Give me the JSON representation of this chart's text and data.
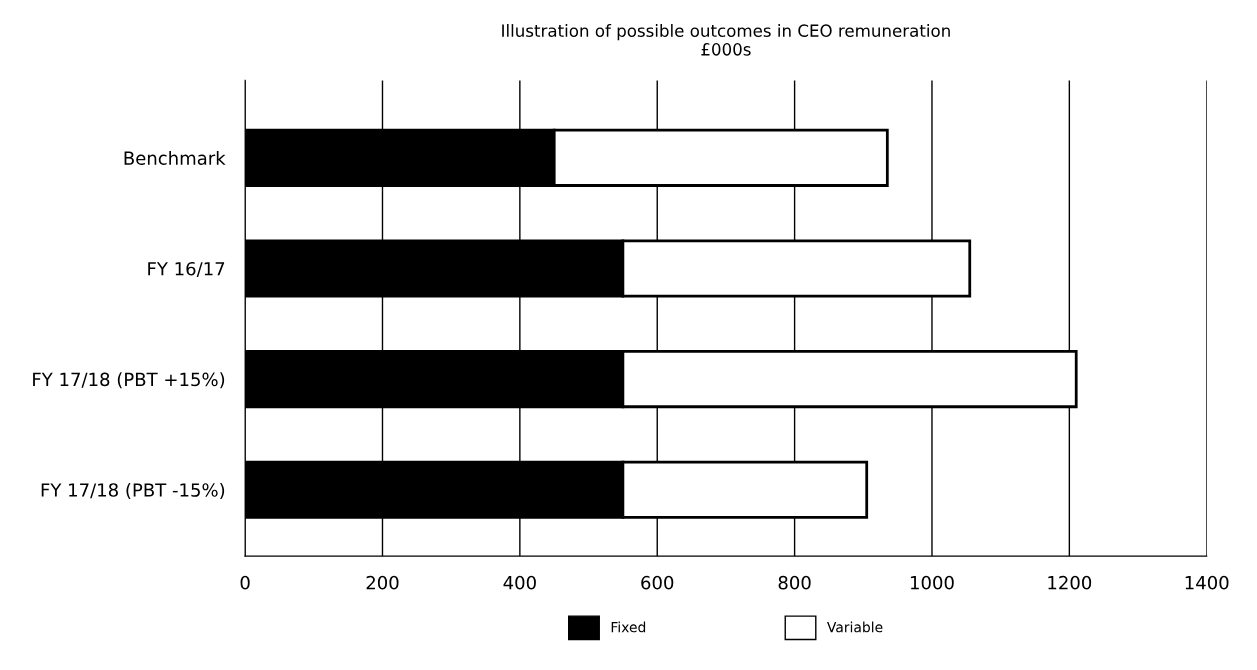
{
  "chart_data": {
    "type": "bar",
    "orientation": "horizontal",
    "stacked": true,
    "title": "Illustration of possible outcomes in CEO remuneration\n£000s",
    "categories": [
      "Benchmark",
      "FY 16/17",
      "FY 17/18 (PBT +15%)",
      "FY 17/18 (PBT -15%)"
    ],
    "series": [
      {
        "name": "Fixed",
        "color": "#000000",
        "values": [
          450,
          550,
          550,
          550
        ]
      },
      {
        "name": "Variable",
        "color": "#ffffff",
        "values": [
          485,
          505,
          660,
          355
        ]
      }
    ],
    "xlim": [
      0,
      1400
    ],
    "xticks": [
      0,
      200,
      400,
      600,
      800,
      1000,
      1200,
      1400
    ],
    "grid": "x",
    "legend": "bottom"
  }
}
